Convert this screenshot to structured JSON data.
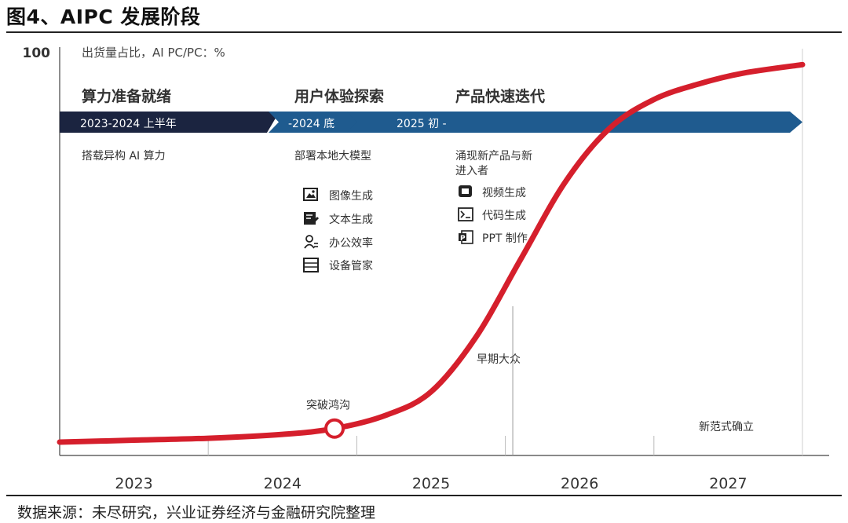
{
  "figure_title": "图4、AIPC 发展阶段",
  "source": "数据来源：未尽研究，兴业证券经济与金融研究院整理",
  "colors": {
    "dark_navy": "#1b2440",
    "blue": "#1f5b8f",
    "curve": "#d51f2c",
    "text": "#333333",
    "grid": "#cfcfcf"
  },
  "chart_data": {
    "type": "line",
    "title": "图4、AIPC 发展阶段",
    "ylabel": "出货量占比，AI PC/PC：%",
    "y_max_label": "100",
    "ylim": [
      0,
      100
    ],
    "xlim": [
      2022.5,
      2027.5
    ],
    "categories": [
      "2023",
      "2024",
      "2025",
      "2026",
      "2027"
    ],
    "series": [
      {
        "name": "AI PC出货量占比",
        "x": [
          2022.5,
          2023.0,
          2023.5,
          2024.0,
          2024.35,
          2024.7,
          2025.0,
          2025.3,
          2025.6,
          2025.9,
          2026.2,
          2026.5,
          2026.8,
          2027.1,
          2027.5
        ],
        "y": [
          0,
          0.5,
          1,
          2,
          3.5,
          7,
          13,
          27,
          47,
          67,
          81,
          88.5,
          92.5,
          95.3,
          97.5
        ]
      }
    ],
    "marker": {
      "x": 2024.35,
      "y": 3.5,
      "label": "突破鸿沟"
    },
    "annotations": [
      {
        "text": "早期大众",
        "x": 2025.55
      },
      {
        "text": "新范式确立",
        "x": 2027.0
      }
    ],
    "phases": [
      {
        "heading": "算力准备就绪",
        "band_label": "2023-2024 上半年",
        "desc": [
          "搭载异构 AI 算力"
        ],
        "items": []
      },
      {
        "heading": "用户体验探索",
        "band_label": "-2024 底",
        "desc": [
          "部署本地大模型"
        ],
        "items": [
          {
            "icon": "image-icon",
            "label": "图像生成"
          },
          {
            "icon": "document-edit-icon",
            "label": "文本生成"
          },
          {
            "icon": "person-icon",
            "label": "办公效率"
          },
          {
            "icon": "list-icon",
            "label": "设备管家"
          }
        ]
      },
      {
        "heading": "产品快速迭代",
        "band_label": "2025 初 -",
        "desc": [
          "涌现新产品与新",
          "进入者"
        ],
        "items": [
          {
            "icon": "video-icon",
            "label": "视频生成"
          },
          {
            "icon": "terminal-icon",
            "label": "代码生成"
          },
          {
            "icon": "ppt-icon",
            "label": "PPT 制作"
          }
        ]
      }
    ]
  }
}
